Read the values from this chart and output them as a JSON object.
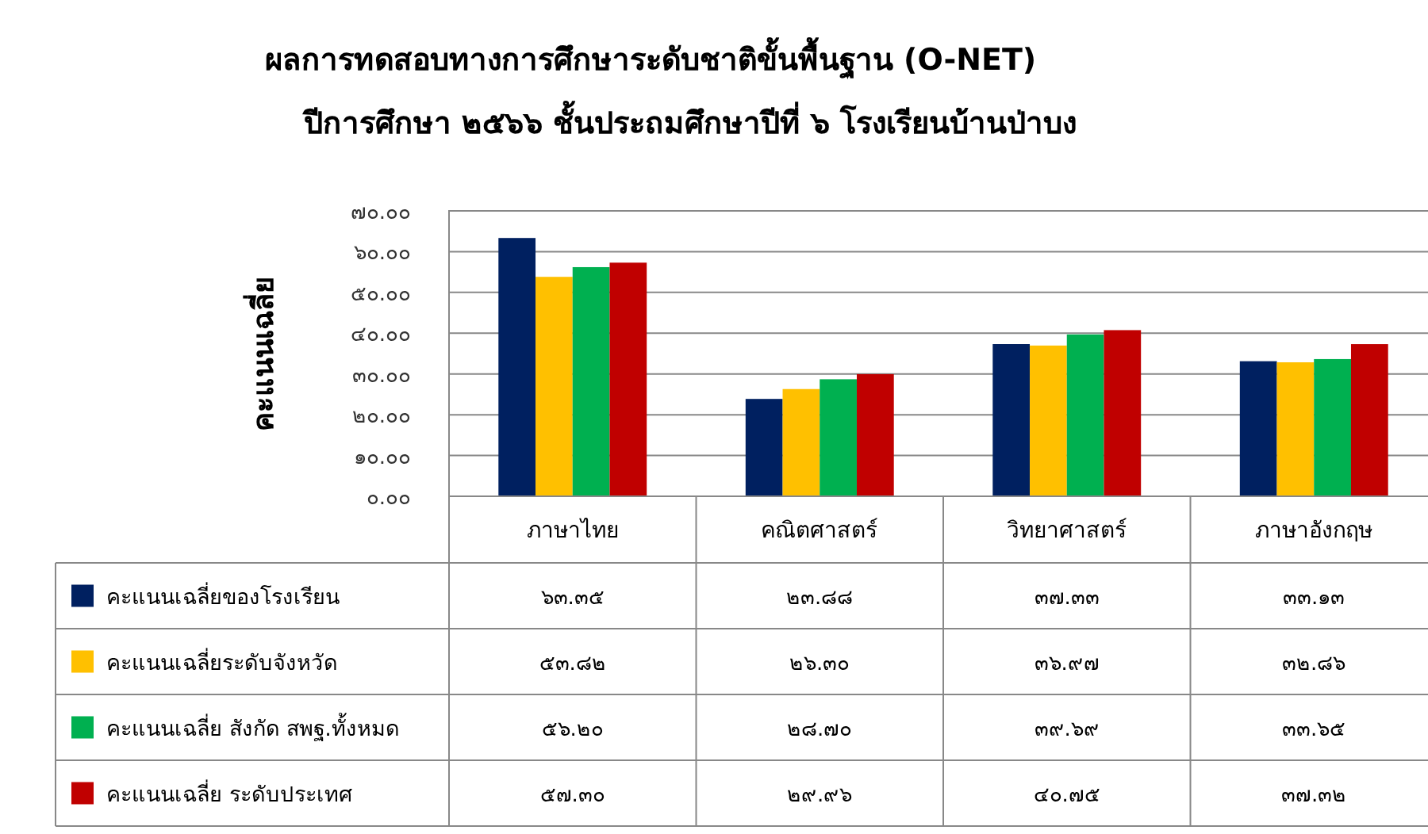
{
  "chart_data": {
    "type": "bar",
    "title": "ผลการทดสอบทางการศึกษาระดับชาติขั้นพื้นฐาน (O-NET)",
    "subtitle": "ปีการศึกษา ๒๕๖๖ ชั้นประถมศึกษาปีที่ ๖ โรงเรียนบ้านป่าบง",
    "ylabel": "คะแนนเฉลี่ย",
    "categories": [
      "ภาษาไทย",
      "คณิตศาสตร์",
      "วิทยาศาสตร์",
      "ภาษาอังกฤษ"
    ],
    "series": [
      {
        "name": "คะแนนเฉลี่ยของโรงเรียน",
        "color": "#002060",
        "values": [
          63.35,
          23.88,
          37.33,
          33.13
        ],
        "value_labels": [
          "๖๓.๓๕",
          "๒๓.๘๘",
          "๓๗.๓๓",
          "๓๓.๑๓"
        ]
      },
      {
        "name": "คะแนนเฉลี่ยระดับจังหวัด",
        "color": "#ffc000",
        "values": [
          53.82,
          26.3,
          36.97,
          32.86
        ],
        "value_labels": [
          "๕๓.๘๒",
          "๒๖.๓๐",
          "๓๖.๙๗",
          "๓๒.๘๖"
        ]
      },
      {
        "name": "คะแนนเฉลี่ย สังกัด สพฐ.ทั้งหมด",
        "color": "#00b050",
        "values": [
          56.2,
          28.7,
          39.69,
          33.65
        ],
        "value_labels": [
          "๕๖.๒๐",
          "๒๘.๗๐",
          "๓๙.๖๙",
          "๓๓.๖๕"
        ]
      },
      {
        "name": "คะแนนเฉลี่ย ระดับประเทศ",
        "color": "#c00000",
        "values": [
          57.3,
          29.96,
          40.75,
          37.32
        ],
        "value_labels": [
          "๕๗.๓๐",
          "๒๙.๙๖",
          "๔๐.๗๕",
          "๓๗.๓๒"
        ]
      }
    ],
    "ylim": [
      0,
      70
    ],
    "yticks": [
      {
        "value": 0,
        "label": "๐.๐๐"
      },
      {
        "value": 10,
        "label": "๑๐.๐๐"
      },
      {
        "value": 20,
        "label": "๒๐.๐๐"
      },
      {
        "value": 30,
        "label": "๓๐.๐๐"
      },
      {
        "value": 40,
        "label": "๔๐.๐๐"
      },
      {
        "value": 50,
        "label": "๕๐.๐๐"
      },
      {
        "value": 60,
        "label": "๖๐.๐๐"
      },
      {
        "value": 70,
        "label": "๗๐.๐๐"
      }
    ],
    "grid": "y",
    "legend": "bottom left"
  }
}
